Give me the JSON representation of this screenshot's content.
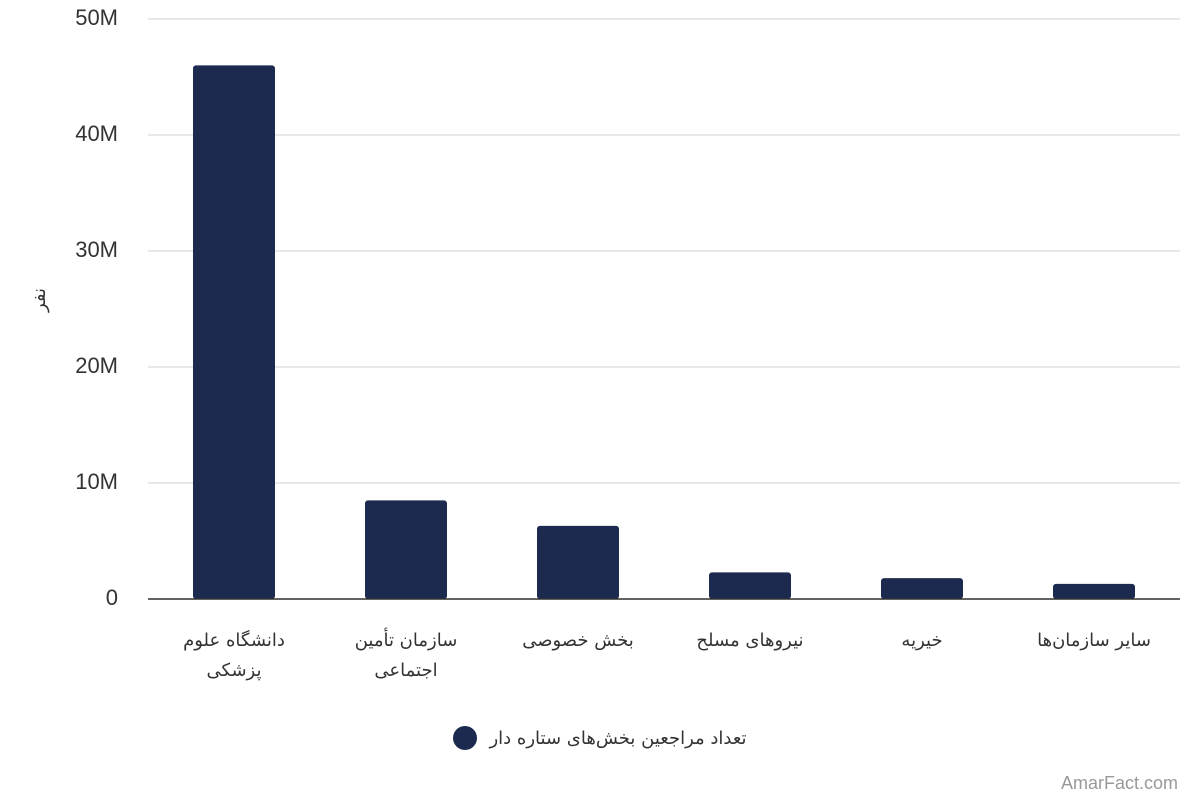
{
  "chart_data": {
    "type": "bar",
    "y_label": "نفر",
    "categories": [
      "دانشگاه علوم پزشکی",
      "سازمان تأمین اجتماعی",
      "بخش خصوصی",
      "نیروهای مسلح",
      "خیریه",
      "سایر سازمان‌ها"
    ],
    "series": [
      {
        "name": "تعداد مراجعین بخش‌های ستاره دار",
        "color": "#1b2a4e",
        "values": [
          46000000,
          8500000,
          6300000,
          2300000,
          1800000,
          1300000
        ]
      }
    ],
    "ylim": [
      0,
      50000000
    ],
    "yticks": [
      0,
      {
        "value": 10000000,
        "label": "10M"
      },
      {
        "value": 20000000,
        "label": "20M"
      },
      {
        "value": 30000000,
        "label": "30M"
      },
      {
        "value": 40000000,
        "label": "40M"
      },
      {
        "value": 50000000,
        "label": "50M"
      }
    ],
    "grid": true,
    "credit": "AmarFact.com"
  }
}
